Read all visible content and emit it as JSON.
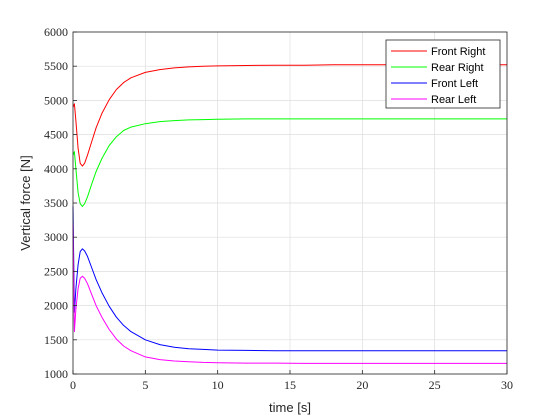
{
  "chart_data": {
    "type": "line",
    "title": "",
    "xlabel": "time [s]",
    "ylabel": "Vertical force [N]",
    "xlim": [
      0,
      30
    ],
    "ylim": [
      1000,
      6000
    ],
    "xticks": [
      0,
      5,
      10,
      15,
      20,
      25,
      30
    ],
    "yticks": [
      1000,
      1500,
      2000,
      2500,
      3000,
      3500,
      4000,
      4500,
      5000,
      5500,
      6000
    ],
    "grid": true,
    "legend_position": "top-right",
    "series": [
      {
        "name": "Front Right",
        "color": "#ff0000",
        "x": [
          0,
          0.1,
          0.2,
          0.35,
          0.5,
          0.65,
          0.8,
          1.0,
          1.3,
          1.6,
          2.0,
          2.5,
          3.0,
          3.5,
          4.0,
          5.0,
          6.0,
          7.0,
          8.0,
          9.0,
          10.0,
          12.0,
          14.0,
          16.0,
          18.0,
          20.0,
          22.0,
          24.0,
          26.0,
          28.0,
          30.0
        ],
        "y": [
          4900,
          4950,
          4700,
          4300,
          4080,
          4040,
          4080,
          4200,
          4400,
          4600,
          4810,
          5010,
          5160,
          5260,
          5330,
          5410,
          5450,
          5475,
          5490,
          5500,
          5505,
          5510,
          5515,
          5515,
          5520,
          5520,
          5520,
          5520,
          5520,
          5520,
          5520
        ]
      },
      {
        "name": "Rear Right",
        "color": "#00ff00",
        "x": [
          0,
          0.1,
          0.2,
          0.35,
          0.5,
          0.65,
          0.8,
          1.0,
          1.3,
          1.6,
          2.0,
          2.5,
          3.0,
          3.5,
          4.0,
          5.0,
          6.0,
          7.0,
          8.0,
          9.0,
          10.0,
          12.0,
          14.0,
          16.0,
          18.0,
          20.0,
          22.0,
          24.0,
          26.0,
          28.0,
          30.0
        ],
        "y": [
          4200,
          4250,
          4000,
          3650,
          3490,
          3450,
          3490,
          3590,
          3780,
          3960,
          4150,
          4340,
          4470,
          4560,
          4610,
          4660,
          4690,
          4705,
          4715,
          4720,
          4725,
          4730,
          4730,
          4730,
          4730,
          4730,
          4730,
          4730,
          4730,
          4730,
          4730
        ]
      },
      {
        "name": "Front Left",
        "color": "#0000ff",
        "x": [
          0,
          0.1,
          0.2,
          0.35,
          0.5,
          0.65,
          0.8,
          1.0,
          1.3,
          1.6,
          2.0,
          2.5,
          3.0,
          3.5,
          4.0,
          5.0,
          6.0,
          7.0,
          8.0,
          9.0,
          10.0,
          12.0,
          14.0,
          16.0,
          18.0,
          20.0,
          22.0,
          24.0,
          26.0,
          28.0,
          30.0
        ],
        "y": [
          3450,
          1900,
          2250,
          2600,
          2790,
          2830,
          2800,
          2720,
          2550,
          2380,
          2190,
          1990,
          1830,
          1710,
          1620,
          1500,
          1430,
          1390,
          1370,
          1360,
          1350,
          1345,
          1340,
          1340,
          1340,
          1340,
          1340,
          1340,
          1340,
          1340,
          1340
        ]
      },
      {
        "name": "Rear Left",
        "color": "#ff00ff",
        "x": [
          0,
          0.1,
          0.2,
          0.35,
          0.5,
          0.65,
          0.8,
          1.0,
          1.3,
          1.6,
          2.0,
          2.5,
          3.0,
          3.5,
          4.0,
          5.0,
          6.0,
          7.0,
          8.0,
          9.0,
          10.0,
          12.0,
          14.0,
          16.0,
          18.0,
          20.0,
          22.0,
          24.0,
          26.0,
          28.0,
          30.0
        ],
        "y": [
          3200,
          1620,
          1950,
          2250,
          2400,
          2430,
          2400,
          2320,
          2160,
          2000,
          1830,
          1650,
          1510,
          1410,
          1340,
          1250,
          1210,
          1190,
          1180,
          1170,
          1165,
          1160,
          1160,
          1155,
          1155,
          1155,
          1155,
          1155,
          1155,
          1155,
          1155
        ]
      }
    ]
  }
}
